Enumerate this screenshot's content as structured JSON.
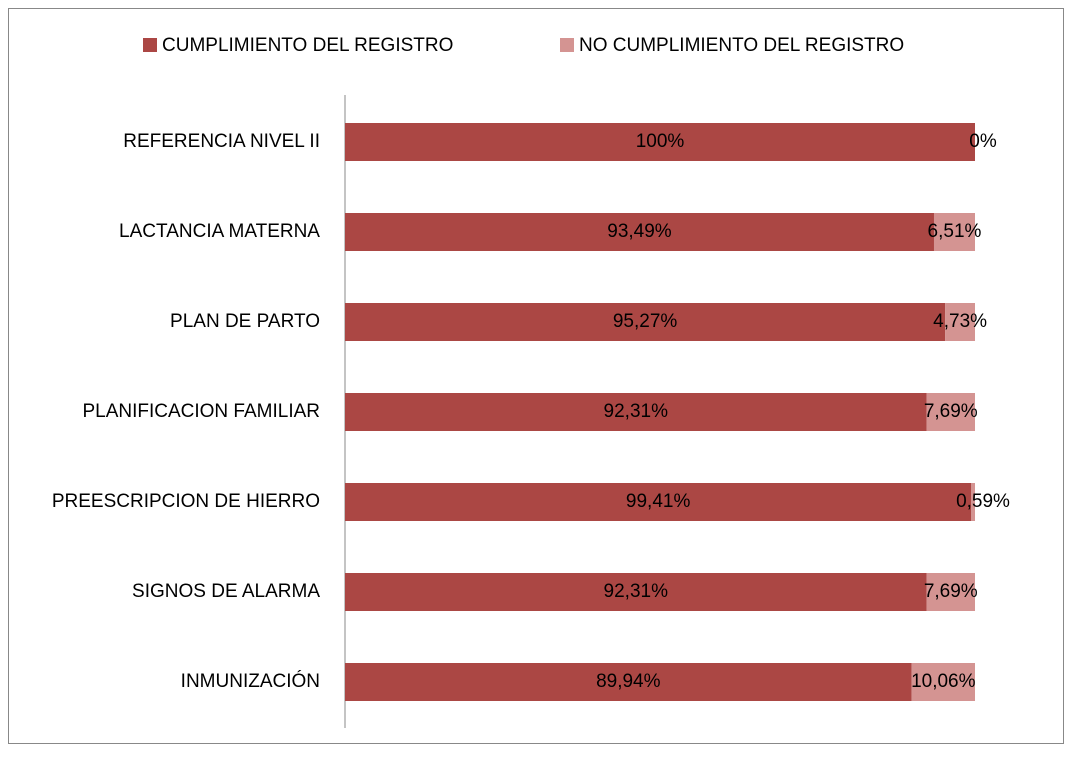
{
  "chart_data": {
    "type": "stacked_barh",
    "categories": [
      "REFERENCIA NIVEL II",
      "LACTANCIA MATERNA",
      "PLAN DE PARTO",
      "PLANIFICACION FAMILIAR",
      "PREESCRIPCION DE HIERRO",
      "SIGNOS DE ALARMA",
      "INMUNIZACIÓN"
    ],
    "series": [
      {
        "name": "CUMPLIMIENTO DEL REGISTRO",
        "color": "#ab4744",
        "values": [
          100,
          93.49,
          95.27,
          92.31,
          99.41,
          92.31,
          89.94
        ],
        "value_labels": [
          "100%",
          "93,49%",
          "95,27%",
          "92,31%",
          "99,41%",
          "92,31%",
          "89,94%"
        ]
      },
      {
        "name": "NO CUMPLIMIENTO DEL REGISTRO",
        "color": "#d49492",
        "values": [
          0,
          6.51,
          4.73,
          7.69,
          0.59,
          7.69,
          10.06
        ],
        "value_labels": [
          "0%",
          "6,51%",
          "4,73%",
          "7,69%",
          "0,59%",
          "7,69%",
          "10,06%"
        ]
      }
    ],
    "xlim": [
      0,
      100
    ],
    "legend": "top"
  }
}
